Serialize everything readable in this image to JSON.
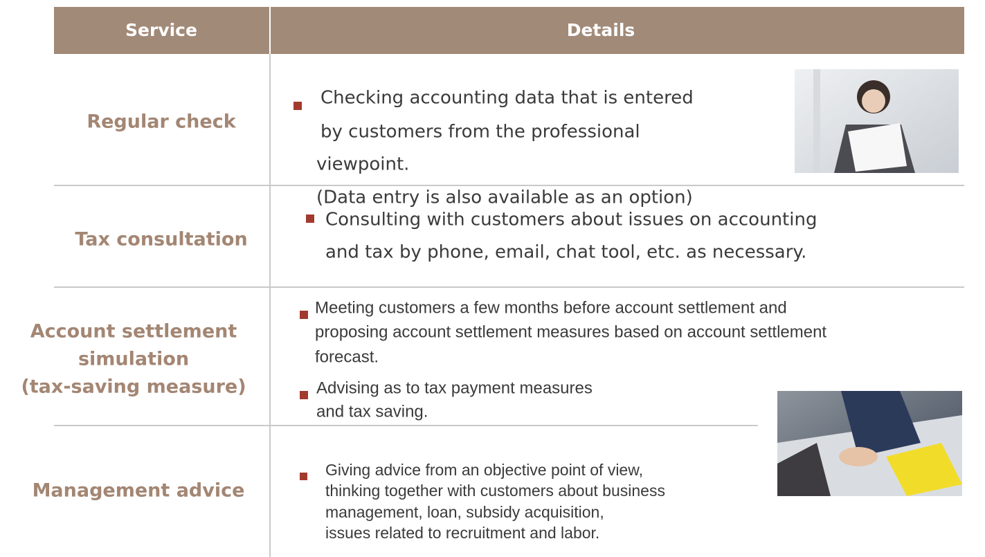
{
  "header": {
    "service": "Service",
    "details": "Details"
  },
  "rows": [
    {
      "service": [
        "Regular check"
      ],
      "details": [
        {
          "lines": [
            "Checking accounting data that is entered",
            "by customers from the professional",
            "viewpoint.",
            "(Data entry is also available as an option)"
          ]
        }
      ]
    },
    {
      "service": [
        "Tax consultation"
      ],
      "details": [
        {
          "lines": [
            "Consulting with customers about issues on accounting",
            "and tax by phone, email, chat tool, etc. as necessary."
          ]
        }
      ]
    },
    {
      "service": [
        "Account settlement",
        "simulation",
        "(tax-saving measure)"
      ],
      "details": [
        {
          "lines": [
            "Meeting customers a few months before account settlement and",
            "proposing account settlement measures based on account settlement",
            "forecast."
          ]
        },
        {
          "lines": [
            "Advising as to tax payment measures",
            "and tax saving."
          ]
        }
      ]
    },
    {
      "service": [
        "Management advice"
      ],
      "details": [
        {
          "lines": [
            "Giving advice from an objective point of view,",
            "thinking together with customers about business",
            "management, loan, subsidy acquisition,",
            "issues related to recruitment and labor."
          ]
        }
      ]
    }
  ]
}
